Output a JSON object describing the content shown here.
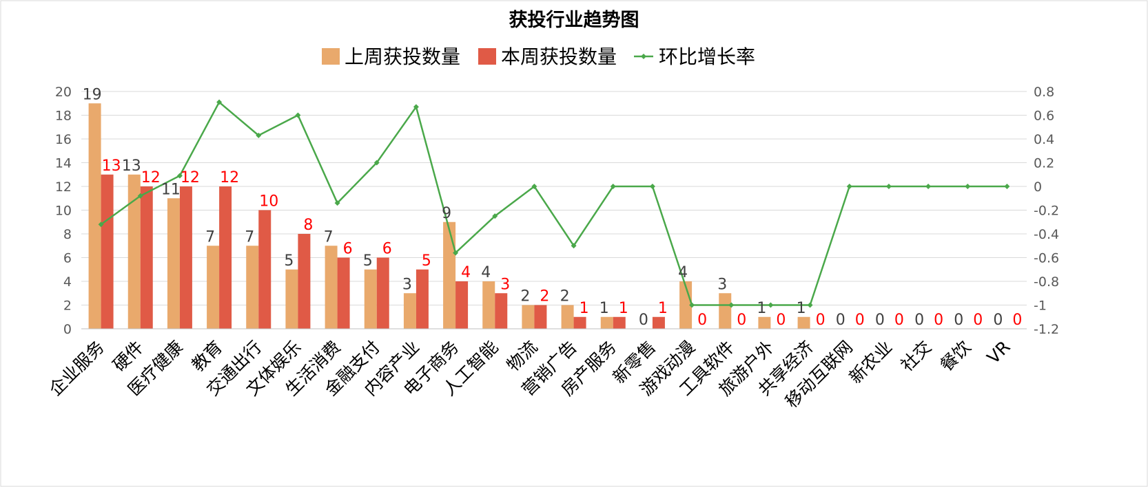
{
  "chart_data": {
    "type": "bar",
    "title": "获投行业趋势图",
    "categories": [
      "企业服务",
      "硬件",
      "医疗健康",
      "教育",
      "交通出行",
      "文体娱乐",
      "生活消费",
      "金融支付",
      "内容产业",
      "电子商务",
      "人工智能",
      "物流",
      "营销广告",
      "房产服务",
      "新零售",
      "游戏动漫",
      "工具软件",
      "旅游户外",
      "共享经济",
      "移动互联网",
      "新农业",
      "社交",
      "餐饮",
      "VR"
    ],
    "series": [
      {
        "name": "上周获投数量",
        "type": "bar",
        "axis": "left",
        "color": "#e9a96c",
        "values": [
          19,
          13,
          11,
          7,
          7,
          5,
          7,
          5,
          3,
          9,
          4,
          2,
          2,
          1,
          0,
          4,
          3,
          1,
          1,
          0,
          0,
          0,
          0,
          0
        ]
      },
      {
        "name": "本周获投数量",
        "type": "bar",
        "axis": "left",
        "color": "#e05a46",
        "values": [
          13,
          12,
          12,
          12,
          10,
          8,
          6,
          6,
          5,
          4,
          3,
          2,
          1,
          1,
          1,
          0,
          0,
          0,
          0,
          0,
          0,
          0,
          0,
          0
        ]
      },
      {
        "name": "环比增长率",
        "type": "line",
        "axis": "right",
        "color": "#4aa84a",
        "values": [
          -0.32,
          -0.08,
          0.09,
          0.71,
          0.43,
          0.6,
          -0.14,
          0.2,
          0.67,
          -0.56,
          -0.25,
          0,
          -0.5,
          0,
          0,
          -1,
          -1,
          -1,
          -1,
          0,
          0,
          0,
          0,
          0
        ]
      }
    ],
    "ylim": [
      0,
      20
    ],
    "yticks": [
      0,
      2,
      4,
      6,
      8,
      10,
      12,
      14,
      16,
      18,
      20
    ],
    "y2lim": [
      -1.2,
      0.8
    ],
    "y2ticks": [
      -1.2,
      -1,
      -0.8,
      -0.6,
      -0.4,
      -0.2,
      0,
      0.2,
      0.4,
      0.6,
      0.8
    ],
    "grid": true,
    "legend": "top-center"
  }
}
